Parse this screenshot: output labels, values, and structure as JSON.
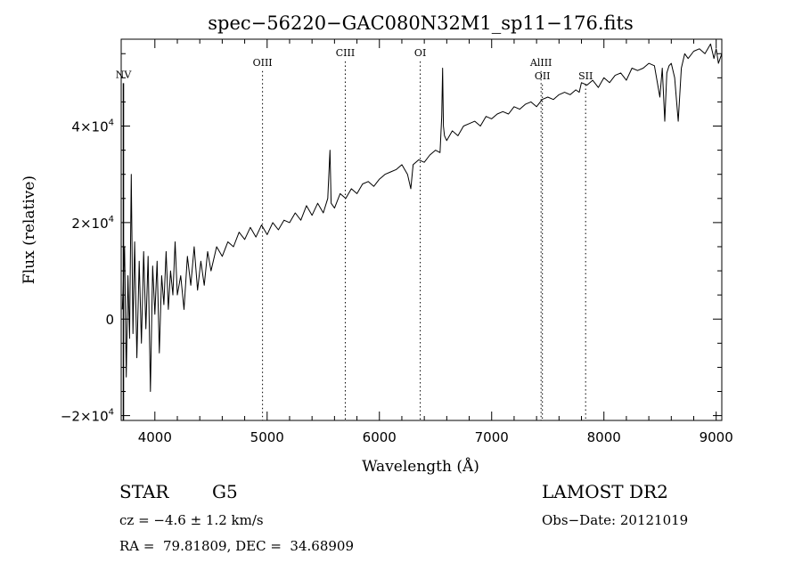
{
  "chart_data": {
    "type": "line",
    "title": "spec−56220−GAC080N32M1_sp11−176.fits",
    "xlabel": "Wavelength (Å)",
    "ylabel": "Flux (relative)",
    "xlim": [
      3700,
      9050
    ],
    "ylim": [
      -21000,
      58000
    ],
    "x_ticks": [
      {
        "value": 4000,
        "label": "4000"
      },
      {
        "value": 5000,
        "label": "5000"
      },
      {
        "value": 6000,
        "label": "6000"
      },
      {
        "value": 7000,
        "label": "7000"
      },
      {
        "value": 8000,
        "label": "8000"
      },
      {
        "value": 9000,
        "label": "9000"
      }
    ],
    "y_ticks": [
      {
        "value": -20000,
        "mant": "−2×10",
        "exp": "4"
      },
      {
        "value": 0,
        "mant": "0",
        "exp": ""
      },
      {
        "value": 20000,
        "mant": "2×10",
        "exp": "4"
      },
      {
        "value": 40000,
        "mant": "4×10",
        "exp": "4"
      }
    ],
    "lines": [
      {
        "name": "NV",
        "x": 3720,
        "label_y": 50000,
        "dotted": false
      },
      {
        "name": "OIII",
        "x": 4959,
        "label_y": 52500,
        "dotted": true
      },
      {
        "name": "CIII",
        "x": 5696,
        "label_y": 54500,
        "dotted": true
      },
      {
        "name": "OI",
        "x": 6364,
        "label_y": 54500,
        "dotted": true
      },
      {
        "name": "AlIII",
        "x": 7440,
        "label_y": 52500,
        "dotted": true
      },
      {
        "name": "OII",
        "x": 7452,
        "label_y": 49700,
        "dotted": true
      },
      {
        "name": "SII",
        "x": 7837,
        "label_y": 49700,
        "dotted": true
      }
    ],
    "series": [
      {
        "points": [
          [
            3710,
            2000
          ],
          [
            3730,
            15000
          ],
          [
            3745,
            -12000
          ],
          [
            3760,
            9000
          ],
          [
            3775,
            -4000
          ],
          [
            3790,
            30000
          ],
          [
            3805,
            -3000
          ],
          [
            3820,
            16000
          ],
          [
            3840,
            -8000
          ],
          [
            3860,
            12000
          ],
          [
            3880,
            -5000
          ],
          [
            3900,
            14000
          ],
          [
            3920,
            -2000
          ],
          [
            3940,
            13000
          ],
          [
            3960,
            -15000
          ],
          [
            3980,
            11000
          ],
          [
            4000,
            1000
          ],
          [
            4020,
            12000
          ],
          [
            4040,
            -7000
          ],
          [
            4060,
            9000
          ],
          [
            4080,
            3000
          ],
          [
            4100,
            14000
          ],
          [
            4120,
            2000
          ],
          [
            4140,
            10000
          ],
          [
            4160,
            5000
          ],
          [
            4180,
            16000
          ],
          [
            4200,
            5000
          ],
          [
            4230,
            9000
          ],
          [
            4260,
            2000
          ],
          [
            4290,
            13000
          ],
          [
            4320,
            7000
          ],
          [
            4350,
            15000
          ],
          [
            4380,
            6000
          ],
          [
            4410,
            12000
          ],
          [
            4440,
            7000
          ],
          [
            4470,
            14000
          ],
          [
            4500,
            10000
          ],
          [
            4550,
            15000
          ],
          [
            4600,
            13000
          ],
          [
            4650,
            16000
          ],
          [
            4700,
            15000
          ],
          [
            4750,
            18000
          ],
          [
            4800,
            16500
          ],
          [
            4850,
            19000
          ],
          [
            4900,
            17000
          ],
          [
            4950,
            19500
          ],
          [
            5000,
            17500
          ],
          [
            5050,
            20000
          ],
          [
            5100,
            18500
          ],
          [
            5150,
            20500
          ],
          [
            5200,
            20000
          ],
          [
            5250,
            22000
          ],
          [
            5300,
            20500
          ],
          [
            5350,
            23500
          ],
          [
            5400,
            21500
          ],
          [
            5450,
            24000
          ],
          [
            5500,
            22000
          ],
          [
            5540,
            25000
          ],
          [
            5560,
            35000
          ],
          [
            5570,
            24000
          ],
          [
            5600,
            23000
          ],
          [
            5650,
            26000
          ],
          [
            5700,
            25000
          ],
          [
            5750,
            27000
          ],
          [
            5800,
            26000
          ],
          [
            5850,
            28000
          ],
          [
            5900,
            28500
          ],
          [
            5950,
            27500
          ],
          [
            6000,
            29000
          ],
          [
            6050,
            30000
          ],
          [
            6100,
            30500
          ],
          [
            6150,
            31000
          ],
          [
            6200,
            32000
          ],
          [
            6250,
            30000
          ],
          [
            6280,
            27000
          ],
          [
            6300,
            32000
          ],
          [
            6350,
            33000
          ],
          [
            6400,
            32500
          ],
          [
            6450,
            34000
          ],
          [
            6500,
            35000
          ],
          [
            6540,
            34500
          ],
          [
            6555,
            42000
          ],
          [
            6563,
            52000
          ],
          [
            6570,
            40000
          ],
          [
            6580,
            38000
          ],
          [
            6600,
            37000
          ],
          [
            6650,
            39000
          ],
          [
            6700,
            38000
          ],
          [
            6750,
            40000
          ],
          [
            6800,
            40500
          ],
          [
            6850,
            41000
          ],
          [
            6900,
            40000
          ],
          [
            6950,
            42000
          ],
          [
            7000,
            41500
          ],
          [
            7050,
            42500
          ],
          [
            7100,
            43000
          ],
          [
            7150,
            42500
          ],
          [
            7200,
            44000
          ],
          [
            7250,
            43500
          ],
          [
            7300,
            44500
          ],
          [
            7350,
            45000
          ],
          [
            7400,
            44000
          ],
          [
            7450,
            45500
          ],
          [
            7500,
            46000
          ],
          [
            7550,
            45500
          ],
          [
            7600,
            46500
          ],
          [
            7650,
            47000
          ],
          [
            7700,
            46500
          ],
          [
            7750,
            47500
          ],
          [
            7780,
            47000
          ],
          [
            7800,
            49000
          ],
          [
            7850,
            48500
          ],
          [
            7900,
            49500
          ],
          [
            7950,
            48000
          ],
          [
            8000,
            50000
          ],
          [
            8050,
            49000
          ],
          [
            8100,
            50500
          ],
          [
            8150,
            51000
          ],
          [
            8200,
            49500
          ],
          [
            8250,
            52000
          ],
          [
            8300,
            51500
          ],
          [
            8350,
            52000
          ],
          [
            8400,
            53000
          ],
          [
            8450,
            52500
          ],
          [
            8498,
            46000
          ],
          [
            8520,
            52000
          ],
          [
            8542,
            41000
          ],
          [
            8560,
            51000
          ],
          [
            8580,
            52500
          ],
          [
            8600,
            53000
          ],
          [
            8630,
            50000
          ],
          [
            8662,
            41000
          ],
          [
            8690,
            52000
          ],
          [
            8720,
            55000
          ],
          [
            8750,
            54000
          ],
          [
            8800,
            55500
          ],
          [
            8850,
            56000
          ],
          [
            8900,
            55000
          ],
          [
            8950,
            57000
          ],
          [
            8980,
            54000
          ],
          [
            9000,
            56000
          ],
          [
            9020,
            53000
          ],
          [
            9050,
            55000
          ]
        ]
      }
    ]
  },
  "footer": {
    "object_class": "STAR",
    "subclass": "G5",
    "survey": "LAMOST DR2",
    "cz": "cz = −4.6 ± 1.2 km/s",
    "obs_date": "Obs−Date: 20121019",
    "coords": "RA =  79.81809, DEC =  34.68909"
  }
}
